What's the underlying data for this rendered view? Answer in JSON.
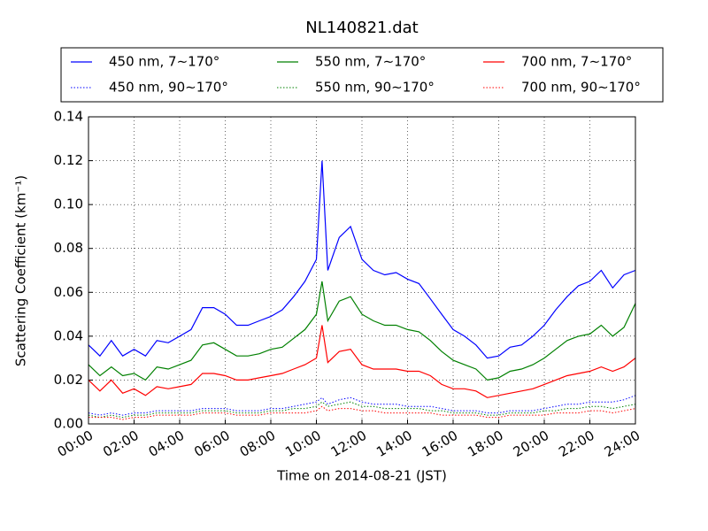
{
  "chart_data": {
    "type": "line",
    "title": "NL140821.dat",
    "xlabel": "Time on 2014-08-21 (JST)",
    "ylabel": "Scattering Coefficient (km⁻¹)",
    "x": [
      0,
      0.5,
      1,
      1.5,
      2,
      2.5,
      3,
      3.5,
      4,
      4.5,
      5,
      5.5,
      6,
      6.5,
      7,
      7.5,
      8,
      8.5,
      9,
      9.5,
      10,
      10.25,
      10.5,
      11,
      11.5,
      12,
      12.5,
      13,
      13.5,
      14,
      14.5,
      15,
      15.5,
      16,
      16.5,
      17,
      17.5,
      18,
      18.5,
      19,
      19.5,
      20,
      20.5,
      21,
      21.5,
      22,
      22.5,
      23,
      23.5,
      24
    ],
    "xlim": [
      0,
      24
    ],
    "xticks": [
      {
        "value": 0,
        "label": "00:00"
      },
      {
        "value": 2,
        "label": "02:00"
      },
      {
        "value": 4,
        "label": "04:00"
      },
      {
        "value": 6,
        "label": "06:00"
      },
      {
        "value": 8,
        "label": "08:00"
      },
      {
        "value": 10,
        "label": "10:00"
      },
      {
        "value": 12,
        "label": "12:00"
      },
      {
        "value": 14,
        "label": "14:00"
      },
      {
        "value": 16,
        "label": "16:00"
      },
      {
        "value": 18,
        "label": "18:00"
      },
      {
        "value": 20,
        "label": "20:00"
      },
      {
        "value": 22,
        "label": "22:00"
      },
      {
        "value": 24,
        "label": "24:00"
      }
    ],
    "ylim": [
      0,
      0.14
    ],
    "yticks": [
      {
        "value": 0,
        "label": "0.00"
      },
      0.02,
      0.04,
      0.06,
      0.08,
      {
        "value": 0.1,
        "label": "0.10"
      },
      0.12,
      0.14
    ],
    "grid": true,
    "legend": "top",
    "series": [
      {
        "name": "450 nm, 7∼170°",
        "color": "#0000ff",
        "dash": "solid",
        "values": [
          0.036,
          0.031,
          0.038,
          0.031,
          0.034,
          0.031,
          0.038,
          0.037,
          0.04,
          0.043,
          0.053,
          0.053,
          0.05,
          0.045,
          0.045,
          0.047,
          0.049,
          0.052,
          0.058,
          0.065,
          0.075,
          0.12,
          0.07,
          0.085,
          0.09,
          0.075,
          0.07,
          0.068,
          0.069,
          0.066,
          0.064,
          0.057,
          0.05,
          0.043,
          0.04,
          0.036,
          0.03,
          0.031,
          0.035,
          0.036,
          0.04,
          0.045,
          0.052,
          0.058,
          0.063,
          0.065,
          0.07,
          0.062,
          0.068,
          0.07
        ]
      },
      {
        "name": "450 nm, 90∼170°",
        "color": "#0000ff",
        "dash": "dotted",
        "values": [
          0.005,
          0.004,
          0.005,
          0.004,
          0.005,
          0.005,
          0.006,
          0.006,
          0.006,
          0.006,
          0.007,
          0.007,
          0.007,
          0.006,
          0.006,
          0.006,
          0.007,
          0.007,
          0.008,
          0.009,
          0.01,
          0.012,
          0.009,
          0.011,
          0.012,
          0.01,
          0.009,
          0.009,
          0.009,
          0.008,
          0.008,
          0.008,
          0.007,
          0.006,
          0.006,
          0.006,
          0.005,
          0.005,
          0.006,
          0.006,
          0.006,
          0.007,
          0.008,
          0.009,
          0.009,
          0.01,
          0.01,
          0.01,
          0.011,
          0.013
        ]
      },
      {
        "name": "550 nm, 7∼170°",
        "color": "#008000",
        "dash": "solid",
        "values": [
          0.027,
          0.022,
          0.026,
          0.022,
          0.023,
          0.02,
          0.026,
          0.025,
          0.027,
          0.029,
          0.036,
          0.037,
          0.034,
          0.031,
          0.031,
          0.032,
          0.034,
          0.035,
          0.039,
          0.043,
          0.05,
          0.065,
          0.047,
          0.056,
          0.058,
          0.05,
          0.047,
          0.045,
          0.045,
          0.043,
          0.042,
          0.038,
          0.033,
          0.029,
          0.027,
          0.025,
          0.02,
          0.021,
          0.024,
          0.025,
          0.027,
          0.03,
          0.034,
          0.038,
          0.04,
          0.041,
          0.045,
          0.04,
          0.044,
          0.055
        ]
      },
      {
        "name": "550 nm, 90∼170°",
        "color": "#008000",
        "dash": "dotted",
        "values": [
          0.004,
          0.003,
          0.004,
          0.003,
          0.004,
          0.004,
          0.005,
          0.005,
          0.005,
          0.005,
          0.006,
          0.006,
          0.006,
          0.005,
          0.005,
          0.005,
          0.006,
          0.006,
          0.007,
          0.007,
          0.008,
          0.01,
          0.008,
          0.009,
          0.01,
          0.008,
          0.008,
          0.007,
          0.007,
          0.007,
          0.007,
          0.006,
          0.006,
          0.005,
          0.005,
          0.005,
          0.004,
          0.004,
          0.005,
          0.005,
          0.005,
          0.006,
          0.006,
          0.007,
          0.007,
          0.008,
          0.008,
          0.007,
          0.008,
          0.009
        ]
      },
      {
        "name": "700 nm, 7∼170°",
        "color": "#ff0000",
        "dash": "solid",
        "values": [
          0.02,
          0.015,
          0.02,
          0.014,
          0.016,
          0.013,
          0.017,
          0.016,
          0.017,
          0.018,
          0.023,
          0.023,
          0.022,
          0.02,
          0.02,
          0.021,
          0.022,
          0.023,
          0.025,
          0.027,
          0.03,
          0.045,
          0.028,
          0.033,
          0.034,
          0.027,
          0.025,
          0.025,
          0.025,
          0.024,
          0.024,
          0.022,
          0.018,
          0.016,
          0.016,
          0.015,
          0.012,
          0.013,
          0.014,
          0.015,
          0.016,
          0.018,
          0.02,
          0.022,
          0.023,
          0.024,
          0.026,
          0.024,
          0.026,
          0.03
        ]
      },
      {
        "name": "700 nm, 90∼170°",
        "color": "#ff0000",
        "dash": "dotted",
        "values": [
          0.003,
          0.003,
          0.003,
          0.002,
          0.003,
          0.003,
          0.004,
          0.004,
          0.004,
          0.004,
          0.005,
          0.005,
          0.005,
          0.004,
          0.004,
          0.004,
          0.005,
          0.005,
          0.005,
          0.005,
          0.006,
          0.008,
          0.006,
          0.007,
          0.007,
          0.006,
          0.006,
          0.005,
          0.005,
          0.005,
          0.005,
          0.005,
          0.004,
          0.004,
          0.004,
          0.004,
          0.003,
          0.003,
          0.004,
          0.004,
          0.004,
          0.004,
          0.005,
          0.005,
          0.005,
          0.006,
          0.006,
          0.005,
          0.006,
          0.007
        ]
      }
    ]
  }
}
